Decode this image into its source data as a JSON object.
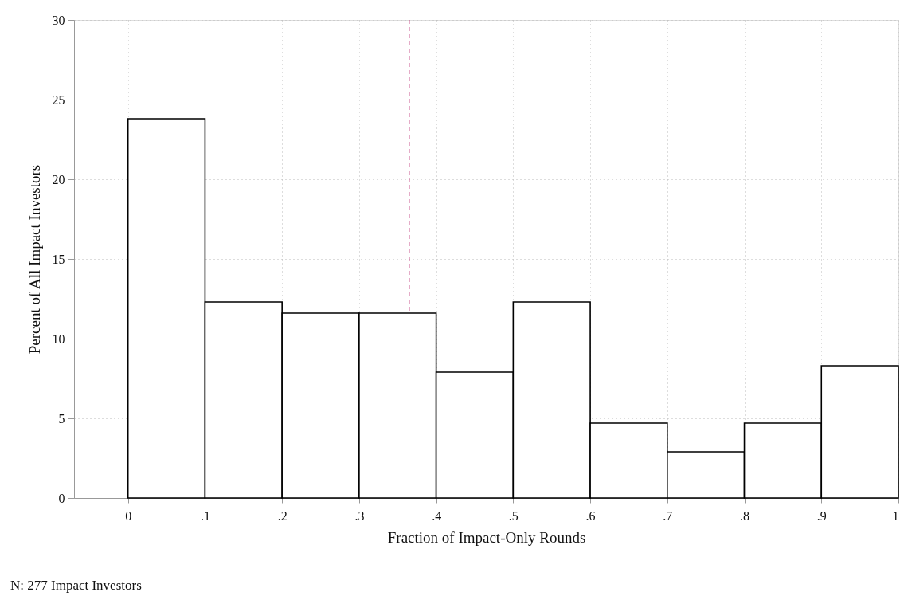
{
  "chart_data": {
    "type": "histogram",
    "xlabel": "Fraction of Impact-Only Rounds",
    "ylabel": "Percent of All Impact Investors",
    "bins": [
      0,
      0.1,
      0.2,
      0.3,
      0.4,
      0.5,
      0.6,
      0.7,
      0.8,
      0.9,
      1
    ],
    "values": [
      23.8,
      12.3,
      11.6,
      11.6,
      7.9,
      12.3,
      4.7,
      2.9,
      4.7,
      8.3
    ],
    "color": "#ffffff",
    "xlim": [
      -0.07,
      1
    ],
    "ylim": [
      0,
      30
    ],
    "xticks": [
      0,
      {
        "value": 0.1,
        "label": ".1"
      },
      {
        "value": 0.2,
        "label": ".2"
      },
      {
        "value": 0.3,
        "label": ".3"
      },
      {
        "value": 0.4,
        "label": ".4"
      },
      {
        "value": 0.5,
        "label": ".5"
      },
      {
        "value": 0.6,
        "label": ".6"
      },
      {
        "value": 0.7,
        "label": ".7"
      },
      {
        "value": 0.8,
        "label": ".8"
      },
      {
        "value": 0.9,
        "label": ".9"
      },
      1
    ],
    "yticks": [
      0,
      5,
      10,
      15,
      20,
      25,
      30
    ],
    "grid": true,
    "ref_lines": [
      {
        "axis": "x",
        "value": 0.365,
        "color": "#c8508a",
        "line_style": "dashed"
      }
    ],
    "annotations": [
      "N: 277 Impact Investors"
    ]
  }
}
